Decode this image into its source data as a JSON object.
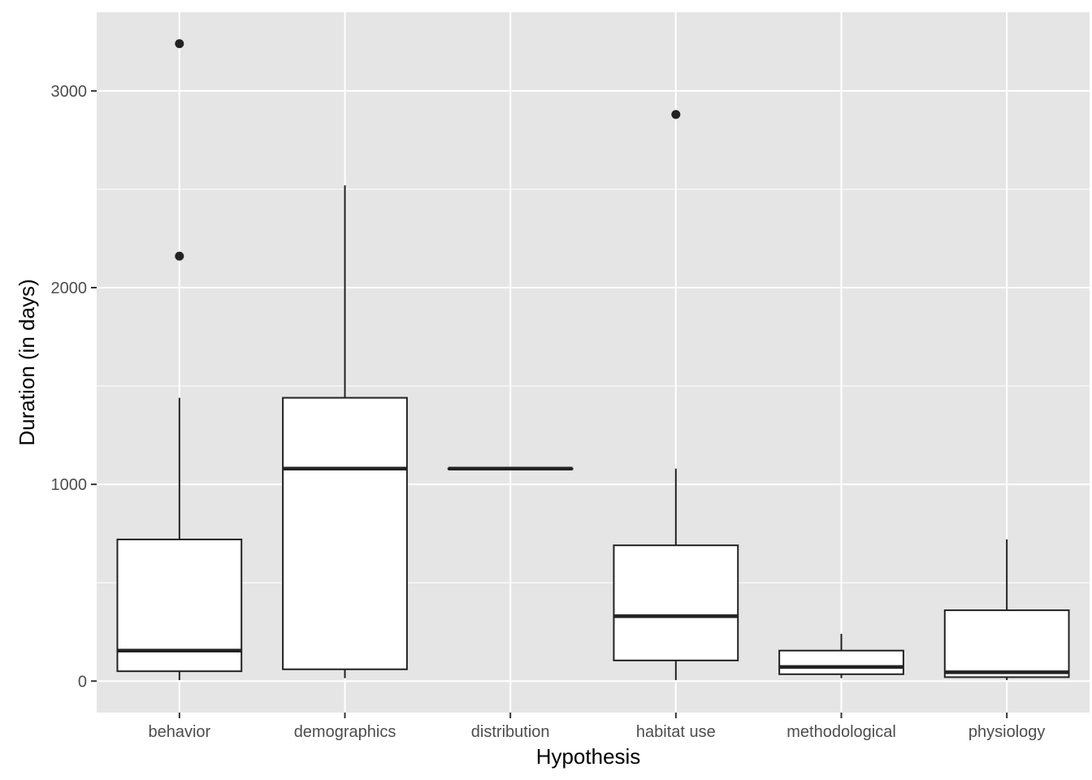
{
  "chart_data": {
    "type": "boxplot",
    "title": "",
    "xlabel": "Hypothesis",
    "ylabel": "Duration (in days)",
    "ylim": [
      -160,
      3400
    ],
    "yticks": [
      0,
      1000,
      2000,
      3000
    ],
    "grid": true,
    "legend": "none",
    "categories": [
      "behavior",
      "demographics",
      "distribution",
      "habitat use",
      "methodological",
      "physiology"
    ],
    "boxes": [
      {
        "category": "behavior",
        "whisker_low": 5,
        "q1": 50,
        "median": 155,
        "q3": 720,
        "whisker_high": 1440,
        "outliers": [
          2160,
          3240
        ]
      },
      {
        "category": "demographics",
        "whisker_low": 15,
        "q1": 60,
        "median": 1080,
        "q3": 1440,
        "whisker_high": 2520,
        "outliers": []
      },
      {
        "category": "distribution",
        "whisker_low": 1080,
        "q1": 1080,
        "median": 1080,
        "q3": 1080,
        "whisker_high": 1080,
        "outliers": []
      },
      {
        "category": "habitat use",
        "whisker_low": 5,
        "q1": 105,
        "median": 330,
        "q3": 690,
        "whisker_high": 1080,
        "outliers": [
          2880
        ]
      },
      {
        "category": "methodological",
        "whisker_low": 15,
        "q1": 35,
        "median": 72,
        "q3": 155,
        "whisker_high": 240,
        "outliers": []
      },
      {
        "category": "physiology",
        "whisker_low": 5,
        "q1": 20,
        "median": 45,
        "q3": 360,
        "whisker_high": 720,
        "outliers": []
      }
    ],
    "colors": {
      "panel": "#e5e5e5",
      "grid_major": "#ffffff",
      "box_fill": "#ffffff",
      "line": "#222222",
      "tick_text": "#4d4d4d"
    }
  }
}
